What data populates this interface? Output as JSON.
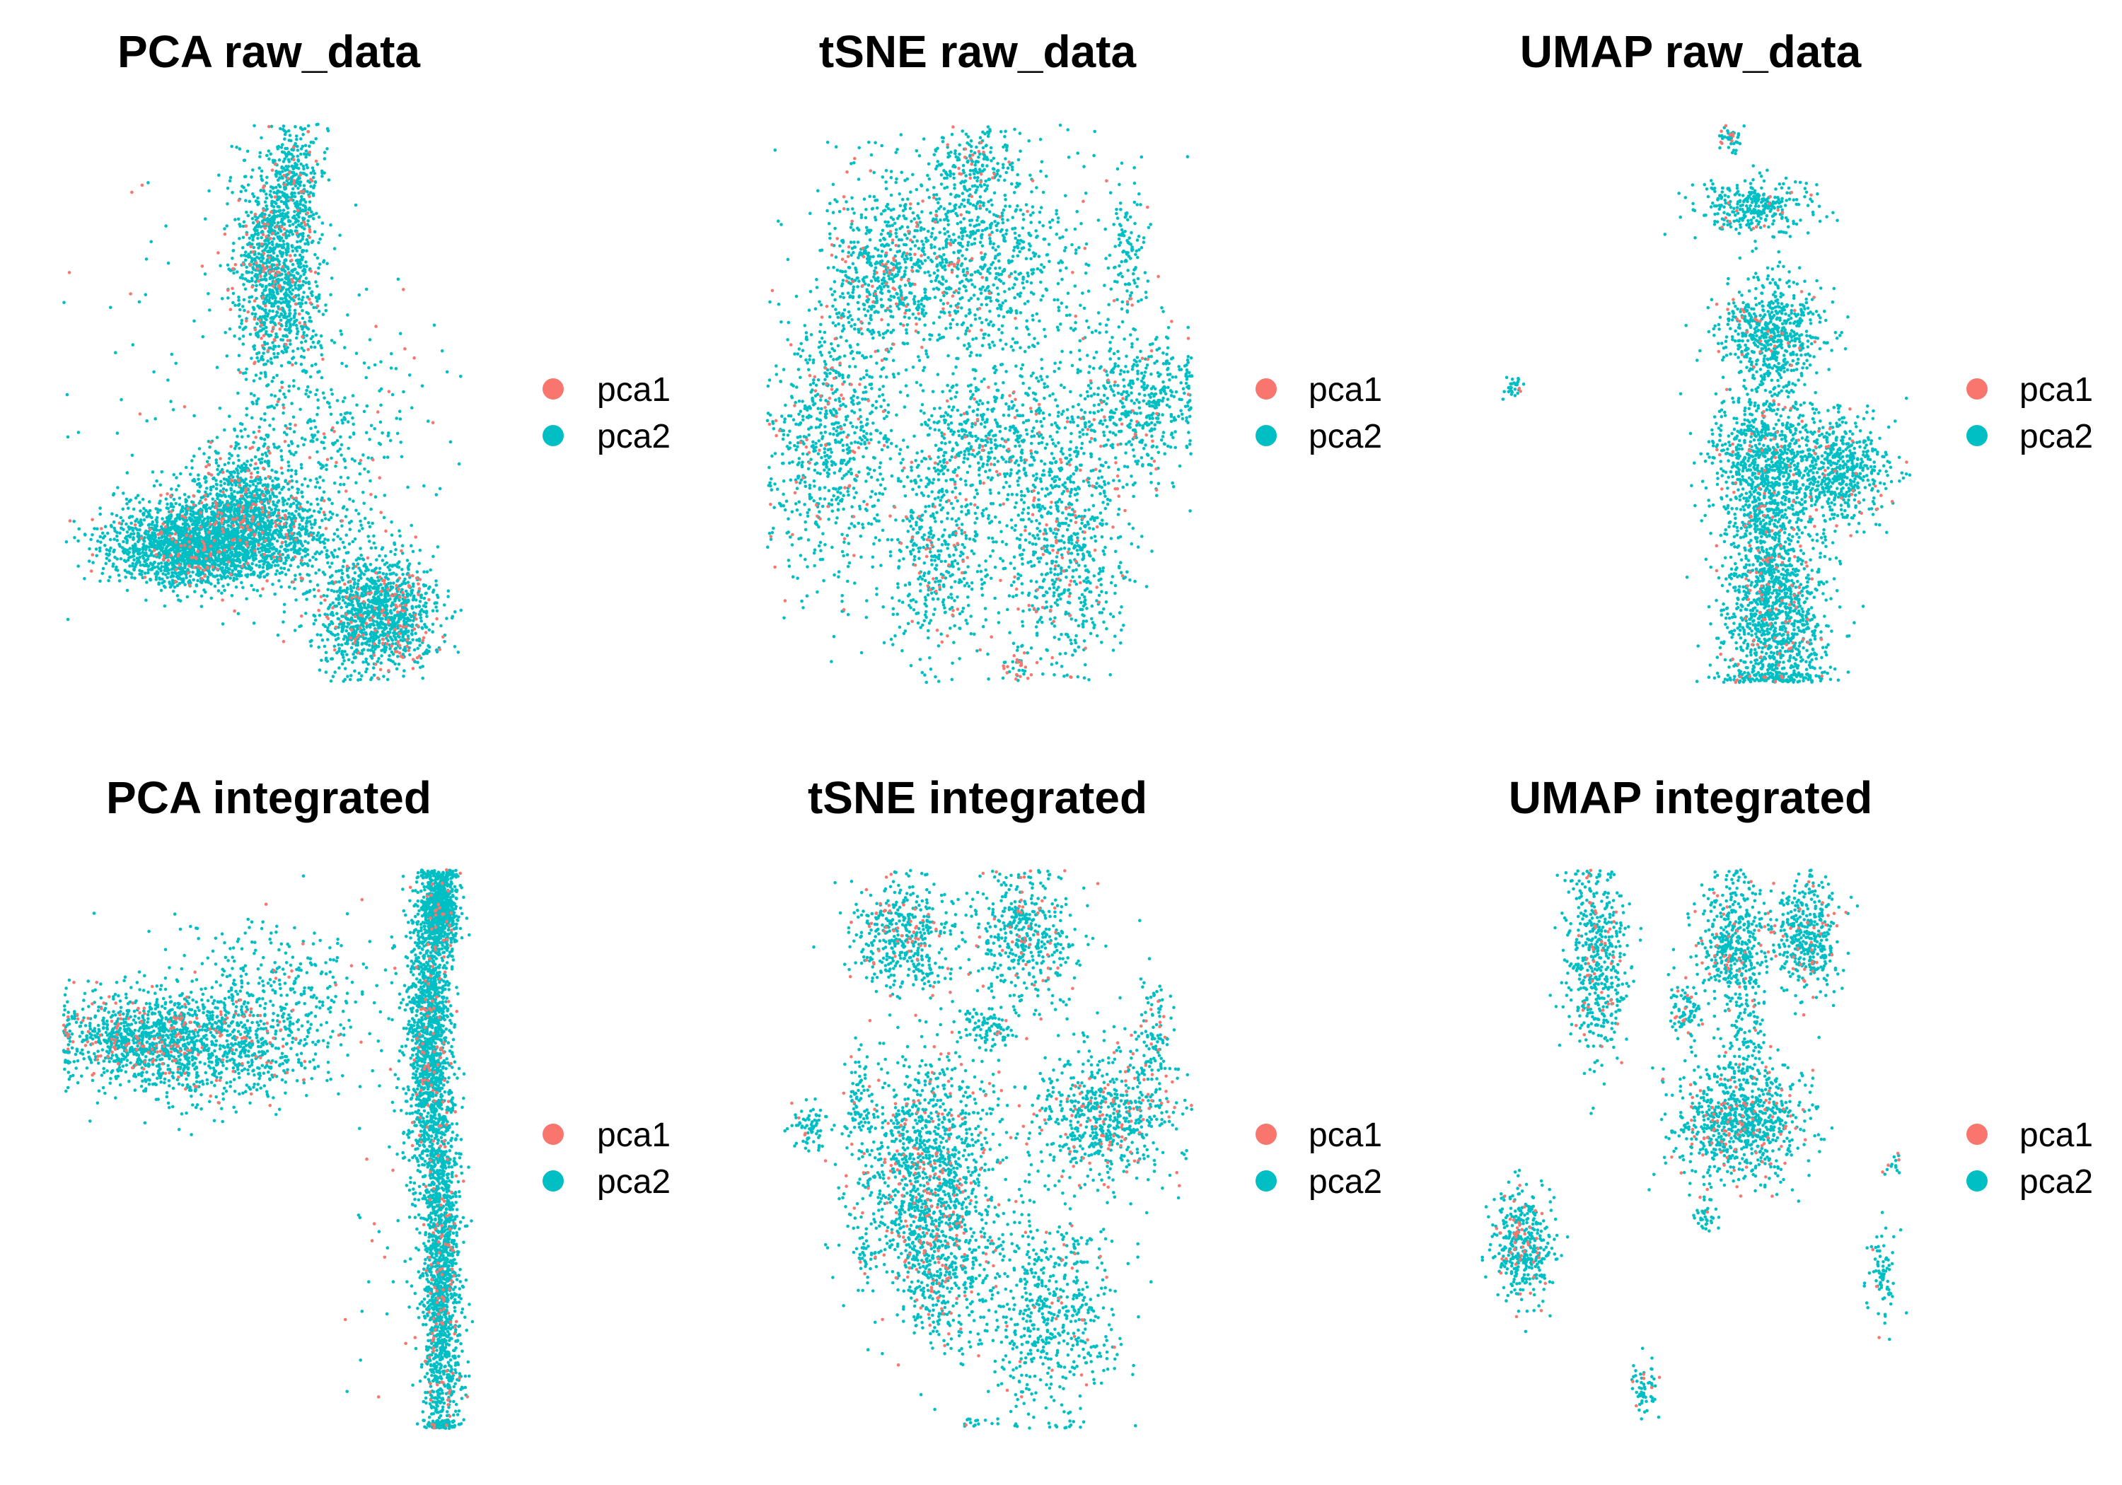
{
  "colors": {
    "pca1": "#F8766D",
    "pca2": "#00BFC4",
    "background": "#FFFFFF"
  },
  "legend_labels": [
    "pca1",
    "pca2"
  ],
  "chart_data": [
    {
      "type": "scatter",
      "title": "PCA raw_data",
      "legend": [
        "pca1",
        "pca2"
      ],
      "legend_position": "right",
      "axes": "none",
      "grid": false,
      "xlim": [
        0,
        100
      ],
      "ylim": [
        0,
        100
      ],
      "clusters": [
        {
          "x": 50,
          "y": 74,
          "sx": 5,
          "sy": 10,
          "n": 1200,
          "pca1_frac": 0.1
        },
        {
          "x": 55,
          "y": 90,
          "sx": 3,
          "sy": 5,
          "n": 220,
          "pca1_frac": 0.1
        },
        {
          "x": 37,
          "y": 26,
          "sx": 12,
          "sy": 4,
          "n": 1900,
          "pca1_frac": 0.05
        },
        {
          "x": 28,
          "y": 23,
          "sx": 8,
          "sy": 3,
          "n": 700,
          "pca1_frac": 0.05
        },
        {
          "x": 43,
          "y": 34,
          "sx": 6,
          "sy": 5,
          "n": 500,
          "pca1_frac": 0.15
        },
        {
          "x": 74,
          "y": 12,
          "sx": 7,
          "sy": 5,
          "n": 1200,
          "pca1_frac": 0.1
        },
        {
          "x": 60,
          "y": 40,
          "sx": 12,
          "sy": 14,
          "n": 420,
          "pca1_frac": 0.1
        },
        {
          "x": 40,
          "y": 55,
          "sx": 20,
          "sy": 22,
          "n": 120,
          "pca1_frac": 0.1
        }
      ]
    },
    {
      "type": "scatter",
      "title": "tSNE raw_data",
      "legend": [
        "pca1",
        "pca2"
      ],
      "legend_position": "right",
      "axes": "none",
      "grid": false,
      "xlim": [
        0,
        100
      ],
      "ylim": [
        0,
        100
      ],
      "clusters": [
        {
          "x": 45,
          "y": 76,
          "sx": 15,
          "sy": 10,
          "n": 1100,
          "pca1_frac": 0.06
        },
        {
          "x": 26,
          "y": 73,
          "sx": 5,
          "sy": 7,
          "n": 320,
          "pca1_frac": 0.15
        },
        {
          "x": 48,
          "y": 92,
          "sx": 4,
          "sy": 4,
          "n": 160,
          "pca1_frac": 0.1
        },
        {
          "x": 15,
          "y": 43,
          "sx": 8,
          "sy": 12,
          "n": 750,
          "pca1_frac": 0.1
        },
        {
          "x": 87,
          "y": 50,
          "sx": 8,
          "sy": 7,
          "n": 500,
          "pca1_frac": 0.06
        },
        {
          "x": 50,
          "y": 44,
          "sx": 9,
          "sy": 5,
          "n": 300,
          "pca1_frac": 0.06
        },
        {
          "x": 40,
          "y": 24,
          "sx": 5,
          "sy": 10,
          "n": 420,
          "pca1_frac": 0.1
        },
        {
          "x": 70,
          "y": 24,
          "sx": 7,
          "sy": 11,
          "n": 650,
          "pca1_frac": 0.1
        },
        {
          "x": 85,
          "y": 77,
          "sx": 2,
          "sy": 6,
          "n": 110,
          "pca1_frac": 0.08
        },
        {
          "x": 60,
          "y": 37,
          "sx": 14,
          "sy": 13,
          "n": 300,
          "pca1_frac": 0.08
        },
        {
          "x": 59,
          "y": 3,
          "sx": 2,
          "sy": 2,
          "n": 40,
          "pca1_frac": 0.45
        }
      ]
    },
    {
      "type": "scatter",
      "title": "UMAP raw_data",
      "legend": [
        "pca1",
        "pca2"
      ],
      "legend_position": "right",
      "axes": "none",
      "grid": false,
      "xlim": [
        0,
        100
      ],
      "ylim": [
        0,
        100
      ],
      "clusters": [
        {
          "x": 57,
          "y": 97,
          "sx": 1.5,
          "sy": 1.5,
          "n": 40,
          "pca1_frac": 0.2
        },
        {
          "x": 63,
          "y": 85,
          "sx": 7,
          "sy": 2.5,
          "n": 320,
          "pca1_frac": 0.06
        },
        {
          "x": 67,
          "y": 62,
          "sx": 6,
          "sy": 5,
          "n": 650,
          "pca1_frac": 0.06
        },
        {
          "x": 65,
          "y": 40,
          "sx": 6,
          "sy": 6,
          "n": 700,
          "pca1_frac": 0.06
        },
        {
          "x": 82,
          "y": 38,
          "sx": 6,
          "sy": 5,
          "n": 600,
          "pca1_frac": 0.05
        },
        {
          "x": 66,
          "y": 25,
          "sx": 3,
          "sy": 8,
          "n": 300,
          "pca1_frac": 0.06
        },
        {
          "x": 68,
          "y": 12,
          "sx": 6,
          "sy": 9,
          "n": 1100,
          "pca1_frac": 0.06
        },
        {
          "x": 8,
          "y": 53,
          "sx": 1,
          "sy": 1,
          "n": 30,
          "pca1_frac": 0.1
        },
        {
          "x": 62,
          "y": 30,
          "sx": 2,
          "sy": 2,
          "n": 40,
          "pca1_frac": 0.05
        }
      ]
    },
    {
      "type": "scatter",
      "title": "PCA integrated",
      "legend": [
        "pca1",
        "pca2"
      ],
      "legend_position": "right",
      "axes": "none",
      "grid": false,
      "xlim": [
        0,
        100
      ],
      "ylim": [
        0,
        100
      ],
      "clusters": [
        {
          "x": 18,
          "y": 70,
          "sx": 10,
          "sy": 4,
          "n": 900,
          "pca1_frac": 0.12
        },
        {
          "x": 38,
          "y": 68,
          "sx": 12,
          "sy": 5,
          "n": 700,
          "pca1_frac": 0.1
        },
        {
          "x": 50,
          "y": 80,
          "sx": 14,
          "sy": 6,
          "n": 300,
          "pca1_frac": 0.06
        },
        {
          "x": 89,
          "y": 93,
          "sx": 2,
          "sy": 4,
          "n": 700,
          "pca1_frac": 0.03
        },
        {
          "x": 86,
          "y": 70,
          "sx": 2.5,
          "sy": 14,
          "n": 1500,
          "pca1_frac": 0.06
        },
        {
          "x": 89,
          "y": 26,
          "sx": 2.3,
          "sy": 17,
          "n": 1500,
          "pca1_frac": 0.06
        },
        {
          "x": 75,
          "y": 40,
          "sx": 5,
          "sy": 20,
          "n": 40,
          "pca1_frac": 0.2
        }
      ]
    },
    {
      "type": "scatter",
      "title": "tSNE integrated",
      "legend": [
        "pca1",
        "pca2"
      ],
      "legend_position": "right",
      "axes": "none",
      "grid": false,
      "xlim": [
        0,
        100
      ],
      "ylim": [
        0,
        100
      ],
      "clusters": [
        {
          "x": 32,
          "y": 88,
          "sx": 6,
          "sy": 5,
          "n": 450,
          "pca1_frac": 0.1
        },
        {
          "x": 61,
          "y": 88,
          "sx": 6,
          "sy": 6,
          "n": 450,
          "pca1_frac": 0.1
        },
        {
          "x": 52,
          "y": 72,
          "sx": 4,
          "sy": 2,
          "n": 100,
          "pca1_frac": 0.05
        },
        {
          "x": 38,
          "y": 47,
          "sx": 9,
          "sy": 10,
          "n": 1200,
          "pca1_frac": 0.12
        },
        {
          "x": 41,
          "y": 28,
          "sx": 6,
          "sy": 8,
          "n": 450,
          "pca1_frac": 0.1
        },
        {
          "x": 80,
          "y": 56,
          "sx": 8,
          "sy": 6,
          "n": 650,
          "pca1_frac": 0.12
        },
        {
          "x": 66,
          "y": 20,
          "sx": 8,
          "sy": 10,
          "n": 600,
          "pca1_frac": 0.08
        },
        {
          "x": 10,
          "y": 54,
          "sx": 2,
          "sy": 2,
          "n": 70,
          "pca1_frac": 0.1
        },
        {
          "x": 21,
          "y": 60,
          "sx": 1.5,
          "sy": 5,
          "n": 60,
          "pca1_frac": 0.1
        },
        {
          "x": 23,
          "y": 30,
          "sx": 1.5,
          "sy": 1.5,
          "n": 30,
          "pca1_frac": 0.1
        },
        {
          "x": 91,
          "y": 70,
          "sx": 2,
          "sy": 6,
          "n": 100,
          "pca1_frac": 0.1
        },
        {
          "x": 48,
          "y": 1,
          "sx": 1,
          "sy": 1,
          "n": 12,
          "pca1_frac": 0.2
        }
      ]
    },
    {
      "type": "scatter",
      "title": "UMAP integrated",
      "legend": [
        "pca1",
        "pca2"
      ],
      "legend_position": "right",
      "axes": "none",
      "grid": false,
      "xlim": [
        0,
        100
      ],
      "ylim": [
        0,
        100
      ],
      "clusters": [
        {
          "x": 27,
          "y": 83,
          "sx": 3.5,
          "sy": 9,
          "n": 500,
          "pca1_frac": 0.08
        },
        {
          "x": 58,
          "y": 87,
          "sx": 4,
          "sy": 6,
          "n": 450,
          "pca1_frac": 0.08
        },
        {
          "x": 75,
          "y": 88,
          "sx": 4,
          "sy": 5,
          "n": 400,
          "pca1_frac": 0.08
        },
        {
          "x": 60,
          "y": 55,
          "sx": 7,
          "sy": 5,
          "n": 900,
          "pca1_frac": 0.1
        },
        {
          "x": 61,
          "y": 70,
          "sx": 2,
          "sy": 5,
          "n": 100,
          "pca1_frac": 0.05
        },
        {
          "x": 47,
          "y": 75,
          "sx": 2,
          "sy": 2.5,
          "n": 80,
          "pca1_frac": 0.05
        },
        {
          "x": 10,
          "y": 33,
          "sx": 3.5,
          "sy": 5,
          "n": 400,
          "pca1_frac": 0.1
        },
        {
          "x": 52,
          "y": 38,
          "sx": 1.5,
          "sy": 2,
          "n": 40,
          "pca1_frac": 0.1
        },
        {
          "x": 92,
          "y": 27,
          "sx": 1.5,
          "sy": 4,
          "n": 80,
          "pca1_frac": 0.08
        },
        {
          "x": 38,
          "y": 7,
          "sx": 1.5,
          "sy": 2.5,
          "n": 60,
          "pca1_frac": 0.08
        },
        {
          "x": 95,
          "y": 47,
          "sx": 1,
          "sy": 1,
          "n": 15,
          "pca1_frac": 0.2
        }
      ]
    }
  ]
}
